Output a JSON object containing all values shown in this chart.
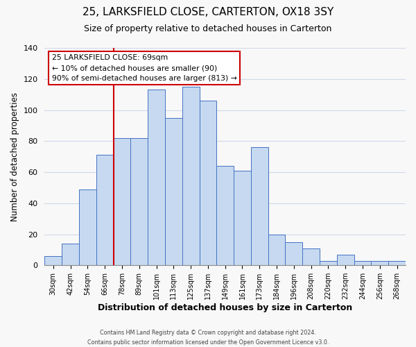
{
  "title": "25, LARKSFIELD CLOSE, CARTERTON, OX18 3SY",
  "subtitle": "Size of property relative to detached houses in Carterton",
  "xlabel": "Distribution of detached houses by size in Carterton",
  "ylabel": "Number of detached properties",
  "footer_line1": "Contains HM Land Registry data © Crown copyright and database right 2024.",
  "footer_line2": "Contains public sector information licensed under the Open Government Licence v3.0.",
  "bar_labels": [
    "30sqm",
    "42sqm",
    "54sqm",
    "66sqm",
    "78sqm",
    "89sqm",
    "101sqm",
    "113sqm",
    "125sqm",
    "137sqm",
    "149sqm",
    "161sqm",
    "173sqm",
    "184sqm",
    "196sqm",
    "208sqm",
    "220sqm",
    "232sqm",
    "244sqm",
    "256sqm",
    "268sqm"
  ],
  "bar_values": [
    6,
    14,
    49,
    71,
    82,
    82,
    113,
    95,
    115,
    106,
    64,
    61,
    76,
    20,
    15,
    11,
    3,
    7,
    3,
    3,
    3
  ],
  "bar_color": "#c6d9f0",
  "bar_edge_color": "#4472c4",
  "vline_x_index": 3.5,
  "vline_color": "#cc0000",
  "annotation_title": "25 LARKSFIELD CLOSE: 69sqm",
  "annotation_line1": "← 10% of detached houses are smaller (90)",
  "annotation_line2": "90% of semi-detached houses are larger (813) →",
  "annotation_box_color": "#ffffff",
  "annotation_box_edge_color": "#cc0000",
  "ylim": [
    0,
    140
  ],
  "yticks": [
    0,
    20,
    40,
    60,
    80,
    100,
    120,
    140
  ],
  "background_color": "#f8f8f8",
  "grid_color": "#d0d8e8",
  "title_fontsize": 11,
  "subtitle_fontsize": 9
}
